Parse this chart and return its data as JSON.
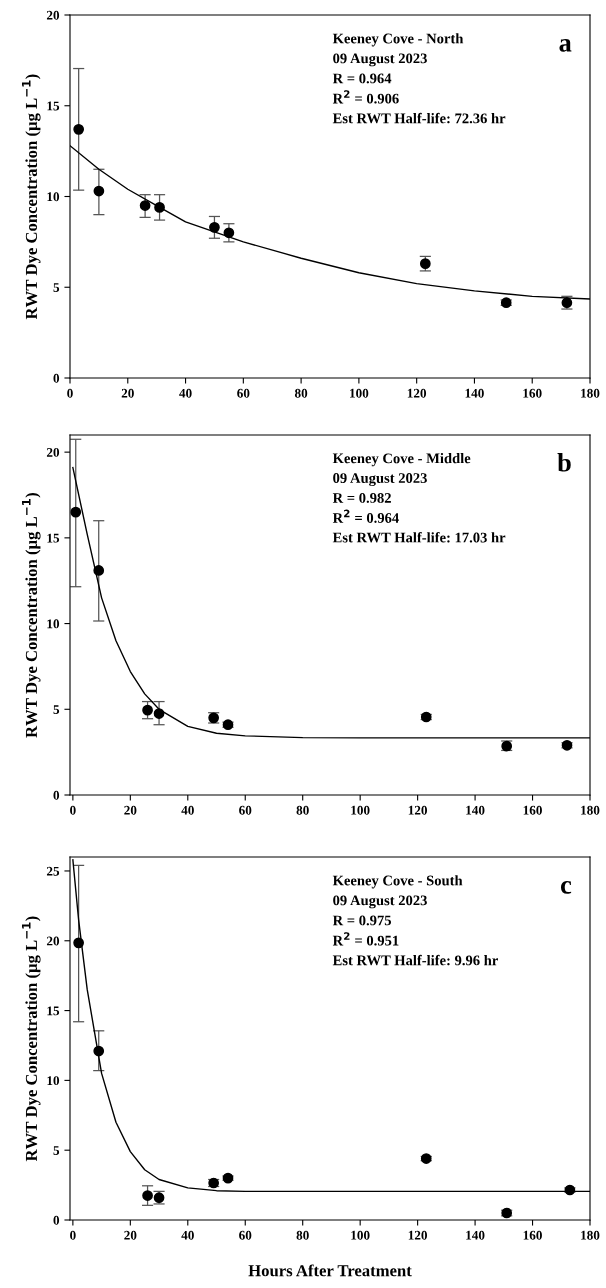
{
  "chart_data": [
    {
      "type": "scatter",
      "ylabel": "RWT Dye Concentration (µg L$^{−1}$)",
      "xlim": [
        0,
        180
      ],
      "xticks": [
        0,
        20,
        40,
        60,
        80,
        100,
        120,
        140,
        160,
        180
      ],
      "ylim": [
        0,
        20
      ],
      "yticks": [
        0,
        5,
        10,
        15,
        20
      ],
      "annotations": [
        "Keeney Cove - North",
        "09 August 2023",
        "R = 0.964",
        "R$^{2}$ = 0.906",
        "Est RWT Half-life: 72.36 hr",
        "a"
      ],
      "series": [
        {
          "marker": "circle",
          "color": "#000000",
          "x": [
            3,
            10,
            26,
            31,
            50,
            55,
            123,
            151,
            172
          ],
          "values": [
            13.7,
            10.3,
            9.5,
            9.4,
            8.3,
            8.0,
            6.3,
            4.15,
            4.15
          ],
          "errors": [
            [
              10.35,
              17.05
            ],
            [
              9.0,
              11.5
            ],
            [
              8.85,
              10.1
            ],
            [
              8.7,
              10.1
            ],
            [
              7.7,
              8.9
            ],
            [
              7.5,
              8.5
            ],
            [
              5.9,
              6.7
            ],
            [
              4.0,
              4.3
            ],
            [
              3.8,
              4.5
            ]
          ]
        },
        {
          "type": "line",
          "marker": "none",
          "color": "#000000",
          "x": [
            0,
            10,
            20,
            30,
            40,
            60,
            80,
            100,
            120,
            140,
            160,
            180
          ],
          "values": [
            12.8,
            11.5,
            10.4,
            9.5,
            8.6,
            7.5,
            6.6,
            5.8,
            5.2,
            4.8,
            4.5,
            4.35
          ]
        }
      ]
    },
    {
      "type": "scatter",
      "ylabel": "RWT Dye Concentration (µg L$^{−1}$)",
      "xlim": [
        -1,
        180
      ],
      "xticks": [
        0,
        20,
        40,
        60,
        80,
        100,
        120,
        140,
        160,
        180
      ],
      "ylim": [
        0,
        21
      ],
      "yticks": [
        0,
        5,
        10,
        15,
        20
      ],
      "annotations": [
        "Keeney Cove - Middle",
        "09 August 2023",
        "R = 0.982",
        "R$^{2}$ = 0.964",
        "Est RWT Half-life: 17.03 hr",
        "b"
      ],
      "series": [
        {
          "marker": "circle",
          "color": "#000000",
          "x": [
            1,
            9,
            26,
            30,
            49,
            54,
            123,
            151,
            172
          ],
          "values": [
            16.5,
            13.1,
            4.95,
            4.75,
            4.5,
            4.1,
            4.55,
            2.85,
            2.9
          ],
          "errors": [
            [
              12.15,
              20.75
            ],
            [
              10.15,
              16.0
            ],
            [
              4.45,
              5.45
            ],
            [
              4.1,
              5.45
            ],
            [
              4.2,
              4.8
            ],
            [
              3.95,
              4.25
            ],
            [
              4.4,
              4.7
            ],
            [
              2.6,
              3.15
            ],
            [
              2.75,
              3.05
            ]
          ]
        },
        {
          "type": "line",
          "marker": "none",
          "color": "#000000",
          "x": [
            0,
            5,
            10,
            15,
            20,
            25,
            30,
            40,
            50,
            60,
            80,
            100,
            180
          ],
          "values": [
            19.1,
            15.2,
            11.5,
            9.0,
            7.2,
            5.9,
            5.0,
            4.0,
            3.6,
            3.45,
            3.35,
            3.33,
            3.33
          ]
        }
      ]
    },
    {
      "type": "scatter",
      "ylabel": "RWT Dye Concentration (µg L$^{−1}$)",
      "xlabel": "Hours After Treatment",
      "xlim": [
        -1,
        180
      ],
      "xticks": [
        0,
        20,
        40,
        60,
        80,
        100,
        120,
        140,
        160,
        180
      ],
      "ylim": [
        0,
        26
      ],
      "yticks": [
        0,
        5,
        10,
        15,
        20,
        25
      ],
      "annotations": [
        "Keeney Cove - South",
        "09 August 2023",
        "R = 0.975",
        "R$^{2}$ = 0.951",
        "Est RWT Half-life: 9.96 hr",
        "c"
      ],
      "series": [
        {
          "marker": "circle",
          "color": "#000000",
          "x": [
            2,
            9,
            26,
            30,
            49,
            54,
            123,
            151,
            173
          ],
          "values": [
            19.85,
            12.1,
            1.75,
            1.6,
            2.65,
            3.0,
            4.4,
            0.5,
            2.15
          ],
          "errors": [
            [
              14.2,
              25.4
            ],
            [
              10.7,
              13.55
            ],
            [
              1.05,
              2.45
            ],
            [
              1.15,
              2.05
            ],
            [
              2.4,
              2.9
            ],
            [
              2.85,
              3.15
            ],
            [
              4.25,
              4.55
            ],
            [
              0.3,
              0.7
            ],
            [
              2.0,
              2.3
            ]
          ]
        },
        {
          "type": "line",
          "marker": "none",
          "color": "#000000",
          "x": [
            0,
            2,
            5,
            10,
            15,
            20,
            25,
            30,
            40,
            50,
            60,
            180
          ],
          "values": [
            25.8,
            21.5,
            16.5,
            10.5,
            7.0,
            4.9,
            3.6,
            2.9,
            2.3,
            2.1,
            2.05,
            2.05
          ]
        }
      ]
    }
  ]
}
